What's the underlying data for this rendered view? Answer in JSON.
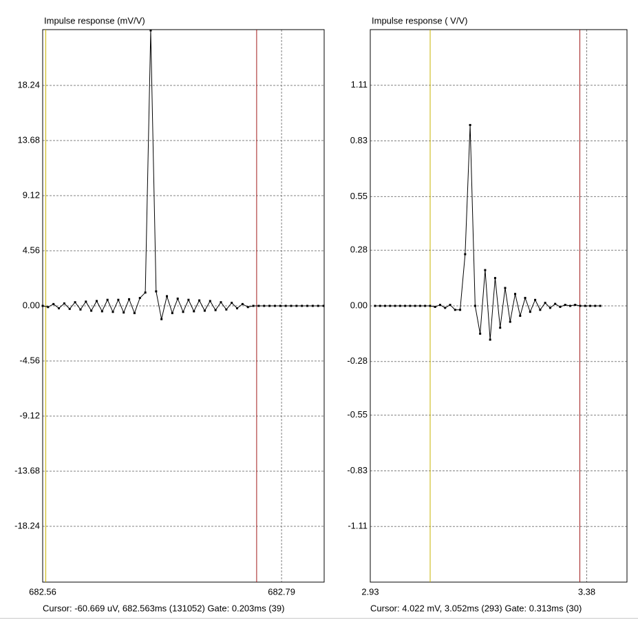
{
  "chart_data": [
    {
      "type": "line",
      "title": "Impulse response (mV/V)",
      "x": [
        682.56,
        682.5652,
        682.5704,
        682.5756,
        682.5808,
        682.586,
        682.5912,
        682.5964,
        682.6016,
        682.6068,
        682.612,
        682.6172,
        682.6224,
        682.6276,
        682.6328,
        682.638,
        682.6432,
        682.6484,
        682.6536,
        682.6588,
        682.664,
        682.6692,
        682.6744,
        682.6796,
        682.6848,
        682.69,
        682.6952,
        682.7004,
        682.7056,
        682.7108,
        682.716,
        682.7212,
        682.7264,
        682.7316,
        682.7368,
        682.742,
        682.7472,
        682.7524,
        682.7576,
        682.7628,
        682.768,
        682.7732,
        682.7784,
        682.7836,
        682.7888,
        682.794,
        682.7992,
        682.8044,
        682.8096,
        682.8148,
        682.82,
        682.8252,
        682.8304
      ],
      "values": [
        0.0,
        -0.1,
        0.15,
        -0.2,
        0.2,
        -0.25,
        0.3,
        -0.3,
        0.35,
        -0.4,
        0.4,
        -0.45,
        0.5,
        -0.5,
        0.5,
        -0.55,
        0.55,
        -0.6,
        0.65,
        1.1,
        22.8,
        1.2,
        -1.1,
        0.8,
        -0.6,
        0.6,
        -0.5,
        0.5,
        -0.45,
        0.45,
        -0.4,
        0.4,
        -0.35,
        0.3,
        -0.3,
        0.25,
        -0.2,
        0.15,
        -0.1,
        0.0,
        0.0,
        0.0,
        0.0,
        0.0,
        0.0,
        0.0,
        0.0,
        0.0,
        0.0,
        0.0,
        0.0,
        0.0,
        0.0
      ],
      "color": "#000000",
      "xlim": [
        682.56,
        682.831
      ],
      "xticks": [
        682.56,
        682.79
      ],
      "ylim": [
        -22.86,
        22.86
      ],
      "yticks": [
        18.24,
        13.68,
        9.12,
        4.56,
        {
          "value": 0,
          "label": "0.00"
        },
        -4.56,
        -9.12,
        -13.68,
        -18.24
      ],
      "grid": true,
      "gate": [
        {
          "x": 682.563,
          "color": "#c8b400"
        },
        {
          "x": 682.766,
          "color": "#a01818"
        }
      ],
      "status": "Cursor: -60.669 uV, 682.563ms (131052)  Gate: 0.203ms (39)"
    },
    {
      "type": "line",
      "title": "Impulse response ( V/V)",
      "x": [
        2.94,
        2.9504,
        2.9608,
        2.9712,
        2.9816,
        2.992,
        3.0024,
        3.0128,
        3.0232,
        3.0336,
        3.044,
        3.0544,
        3.0648,
        3.0752,
        3.0856,
        3.096,
        3.1064,
        3.1168,
        3.1272,
        3.1376,
        3.148,
        3.1584,
        3.1688,
        3.1792,
        3.1896,
        3.2,
        3.2104,
        3.2208,
        3.2312,
        3.2416,
        3.252,
        3.2624,
        3.2728,
        3.2832,
        3.2936,
        3.304,
        3.3144,
        3.3248,
        3.3352,
        3.3456,
        3.356,
        3.3664,
        3.3768,
        3.3872,
        3.3976,
        3.408
      ],
      "values": [
        0,
        0,
        0,
        0,
        0,
        0,
        0,
        0,
        0,
        0,
        0,
        0,
        -0.005,
        0.005,
        -0.01,
        0.005,
        -0.02,
        -0.02,
        0.26,
        0.91,
        0.0,
        -0.14,
        0.18,
        -0.17,
        0.14,
        -0.11,
        0.09,
        -0.08,
        0.06,
        -0.05,
        0.04,
        -0.03,
        0.03,
        -0.02,
        0.015,
        -0.01,
        0.01,
        -0.005,
        0.005,
        0,
        0.005,
        0,
        0,
        0,
        0,
        0
      ],
      "color": "#000000",
      "xlim": [
        2.93,
        3.4637
      ],
      "xticks": [
        2.93,
        3.38
      ],
      "ylim": [
        -1.39,
        1.39
      ],
      "yticks": [
        1.11,
        0.83,
        0.55,
        0.28,
        {
          "value": 0,
          "label": "0.00"
        },
        -0.28,
        -0.55,
        -0.83,
        -1.11
      ],
      "grid": true,
      "gate": [
        {
          "x": 3.0545,
          "color": "#c8b400"
        },
        {
          "x": 3.3657,
          "color": "#a01818"
        }
      ],
      "status": "Cursor: 4.022 mV, 3.052ms (293)  Gate: 0.313ms (30)"
    }
  ]
}
